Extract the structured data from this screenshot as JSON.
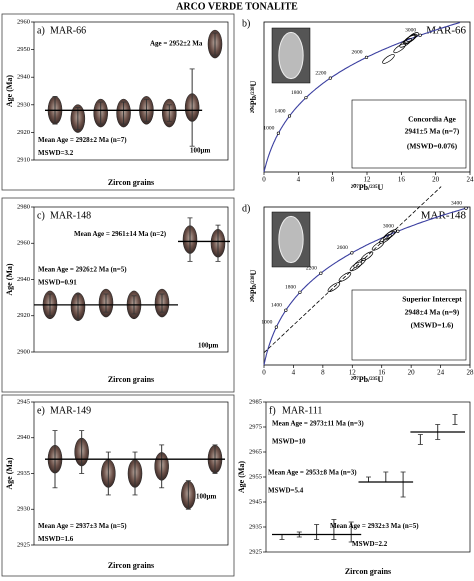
{
  "title": "ARCO VERDE TONALITE",
  "chart_data": [
    {
      "type": "errorbar",
      "panel": "a)",
      "title": "MAR-66",
      "ylabel": "Age (Ma)",
      "xlabel": "Zircon grains",
      "ylim": [
        2910,
        2960
      ],
      "yticks": [
        2910,
        2920,
        2930,
        2940,
        2950,
        2960
      ],
      "values": [
        2928,
        2925,
        2927,
        2927,
        2928,
        2927,
        2929,
        2952
      ],
      "errors": [
        5,
        4,
        4,
        4,
        4,
        3,
        14,
        4
      ],
      "means": [
        {
          "value": 2928,
          "label": "Mean Age = 2928±2 Ma (n=7)",
          "mswd": "MSWD=3.2"
        }
      ],
      "annotations": [
        "Age = 2952±2 Ma",
        "100μm"
      ]
    },
    {
      "type": "concordia",
      "panel": "b)",
      "title": "MAR-66",
      "xlabel": "²⁰⁷Pb/²³⁵U",
      "ylabel": "²⁰⁶Pb/²³⁸U",
      "xlim": [
        0,
        24
      ],
      "xticks": [
        0,
        4,
        8,
        12,
        16,
        20,
        24
      ],
      "ylim": [
        0,
        0.65
      ],
      "age_ticks": [
        1000,
        1400,
        1800,
        2200,
        2600,
        3000
      ],
      "ellipses": {
        "x": [
          17.1,
          16.5,
          15.8,
          14.5,
          17.3,
          16.9,
          17.0
        ],
        "y": [
          0.578,
          0.56,
          0.536,
          0.49,
          0.585,
          0.573,
          0.575
        ]
      },
      "discordia": false,
      "annotations": [
        "Concordia Age",
        "2941±5 Ma (n=7)",
        "(MSWD=0.076)"
      ]
    },
    {
      "type": "errorbar",
      "panel": "c)",
      "title": "MAR-148",
      "ylabel": "Age (Ma)",
      "xlabel": "Zircon grains",
      "ylim": [
        2900,
        2980
      ],
      "yticks": [
        2900,
        2920,
        2940,
        2960,
        2980
      ],
      "values": [
        2926,
        2925,
        2927,
        2926,
        2927,
        2962,
        2960
      ],
      "errors": [
        6,
        7,
        5,
        5,
        5,
        12,
        10
      ],
      "means": [
        {
          "value": 2926,
          "label": "Mean Age = 2926±2 Ma (n=5)",
          "mswd": "MSWD=0.91"
        },
        {
          "value": 2961,
          "label": "Mean Age = 2961±14 Ma (n=2)"
        }
      ],
      "annotations": [
        "100μm"
      ]
    },
    {
      "type": "concordia",
      "panel": "d)",
      "title": "MAR-148",
      "xlabel": "²⁰⁷Pb/²³⁵U",
      "ylabel": "²⁰⁶Pb/²³⁸U",
      "xlim": [
        0,
        28
      ],
      "xticks": [
        0,
        4,
        8,
        12,
        16,
        20,
        24,
        28
      ],
      "ylim": [
        0,
        0.7
      ],
      "age_ticks": [
        1000,
        1400,
        1800,
        2200,
        2600,
        3000,
        3400
      ],
      "ellipses": {
        "x": [
          17.2,
          15.5,
          14,
          12.5,
          11,
          16.5,
          13,
          9.5,
          17.0
        ],
        "y": [
          0.58,
          0.528,
          0.482,
          0.437,
          0.39,
          0.559,
          0.452,
          0.345,
          0.574
        ]
      },
      "discordia": true,
      "annotations": [
        "Superior Intercept",
        "2948±4 Ma (n=9)",
        "(MSWD=1.6)"
      ]
    },
    {
      "type": "errorbar",
      "panel": "e)",
      "title": "MAR-149",
      "ylabel": "Age (Ma)",
      "xlabel": "Zircon grains",
      "ylim": [
        2925,
        2945
      ],
      "yticks": [
        2925,
        2930,
        2935,
        2940,
        2945
      ],
      "values": [
        2937,
        2938,
        2935,
        2935,
        2936,
        2932,
        2937
      ],
      "errors": [
        4,
        3,
        3,
        3,
        3,
        2,
        2
      ],
      "means": [
        {
          "value": 2937,
          "label": "Mean Age = 2937±3 Ma (n=5)",
          "mswd": "MSWD=1.6"
        }
      ],
      "annotations": [
        "100μm"
      ]
    },
    {
      "type": "errorbar",
      "panel": "f)",
      "title": "MAR-111",
      "ylabel": "Age (Ma)",
      "xlabel": "Zircon grains",
      "ylim": [
        2925,
        2985
      ],
      "yticks": [
        2925,
        2935,
        2945,
        2955,
        2965,
        2975,
        2985
      ],
      "values": [
        2931,
        2932,
        2933,
        2934,
        2933,
        2954,
        2955,
        2952,
        2970,
        2973,
        2978
      ],
      "errors": [
        1,
        1,
        3,
        4,
        4,
        1,
        2,
        5,
        2,
        3,
        2
      ],
      "means": [
        {
          "value": 2932,
          "label": "Mean Age = 2932±3 Ma (n=5)",
          "mswd": "MSWD=2.2"
        },
        {
          "value": 2953,
          "label": "Mean Age = 2953±8 Ma (n=3)",
          "mswd": "MSWD=5.4"
        },
        {
          "value": 2973,
          "label": "Mean Age = 2973±11 Ma (n=3)",
          "mswd": "MSWD=10"
        }
      ],
      "annotations": []
    }
  ]
}
